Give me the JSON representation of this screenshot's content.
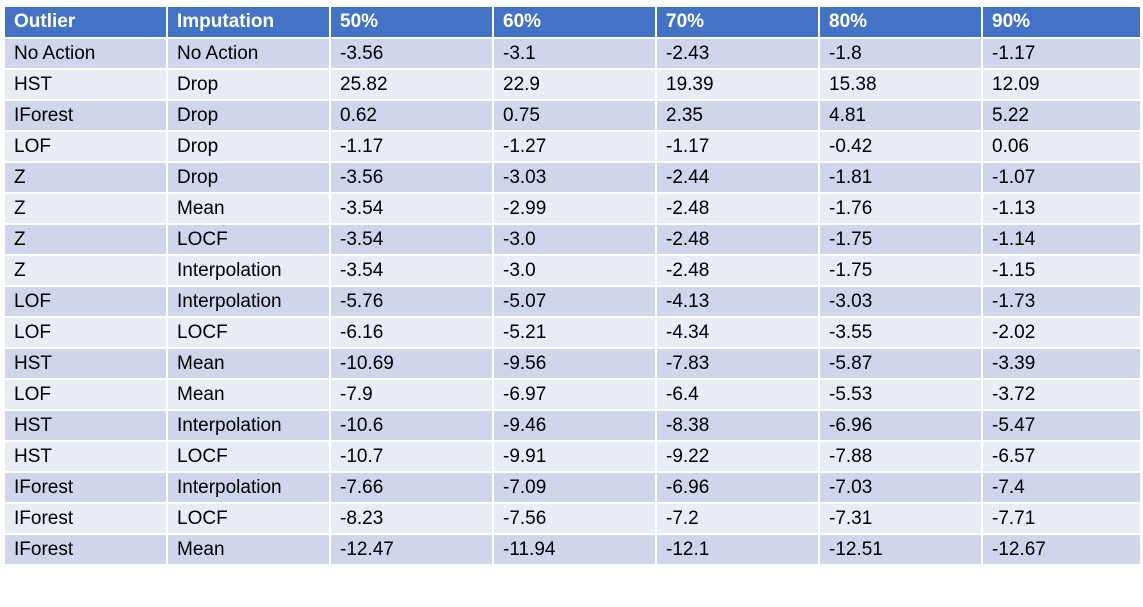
{
  "table": {
    "headers": [
      "Outlier",
      "Imputation",
      "50%",
      "60%",
      "70%",
      "80%",
      "90%"
    ],
    "rows": [
      [
        "No Action",
        "No Action",
        "-3.56",
        "-3.1",
        "-2.43",
        "-1.8",
        "-1.17"
      ],
      [
        "HST",
        "Drop",
        "25.82",
        "22.9",
        "19.39",
        "15.38",
        "12.09"
      ],
      [
        "IForest",
        "Drop",
        "0.62",
        "0.75",
        "2.35",
        "4.81",
        "5.22"
      ],
      [
        "LOF",
        "Drop",
        "-1.17",
        "-1.27",
        "-1.17",
        "-0.42",
        "0.06"
      ],
      [
        "Z",
        "Drop",
        "-3.56",
        "-3.03",
        "-2.44",
        "-1.81",
        "-1.07"
      ],
      [
        "Z",
        "Mean",
        "-3.54",
        "-2.99",
        "-2.48",
        "-1.76",
        "-1.13"
      ],
      [
        "Z",
        "LOCF",
        "-3.54",
        "-3.0",
        "-2.48",
        "-1.75",
        "-1.14"
      ],
      [
        "Z",
        "Interpolation",
        "-3.54",
        "-3.0",
        "-2.48",
        "-1.75",
        "-1.15"
      ],
      [
        "LOF",
        "Interpolation",
        "-5.76",
        "-5.07",
        "-4.13",
        "-3.03",
        "-1.73"
      ],
      [
        "LOF",
        "LOCF",
        "-6.16",
        "-5.21",
        "-4.34",
        "-3.55",
        "-2.02"
      ],
      [
        "HST",
        "Mean",
        "-10.69",
        "-9.56",
        "-7.83",
        "-5.87",
        "-3.39"
      ],
      [
        "LOF",
        "Mean",
        "-7.9",
        "-6.97",
        "-6.4",
        "-5.53",
        "-3.72"
      ],
      [
        "HST",
        "Interpolation",
        "-10.6",
        "-9.46",
        "-8.38",
        "-6.96",
        "-5.47"
      ],
      [
        "HST",
        "LOCF",
        "-10.7",
        "-9.91",
        "-9.22",
        "-7.88",
        "-6.57"
      ],
      [
        "IForest",
        "Interpolation",
        "-7.66",
        "-7.09",
        "-6.96",
        "-7.03",
        "-7.4"
      ],
      [
        "IForest",
        "LOCF",
        "-8.23",
        "-7.56",
        "-7.2",
        "-7.31",
        "-7.71"
      ],
      [
        "IForest",
        "Mean",
        "-12.47",
        "-11.94",
        "-12.1",
        "-12.51",
        "-12.67"
      ]
    ]
  },
  "colors": {
    "header_bg": "#4472c4",
    "header_text": "#ffffff",
    "row_dark": "#cfd5ea",
    "row_light": "#e9ebf5"
  }
}
